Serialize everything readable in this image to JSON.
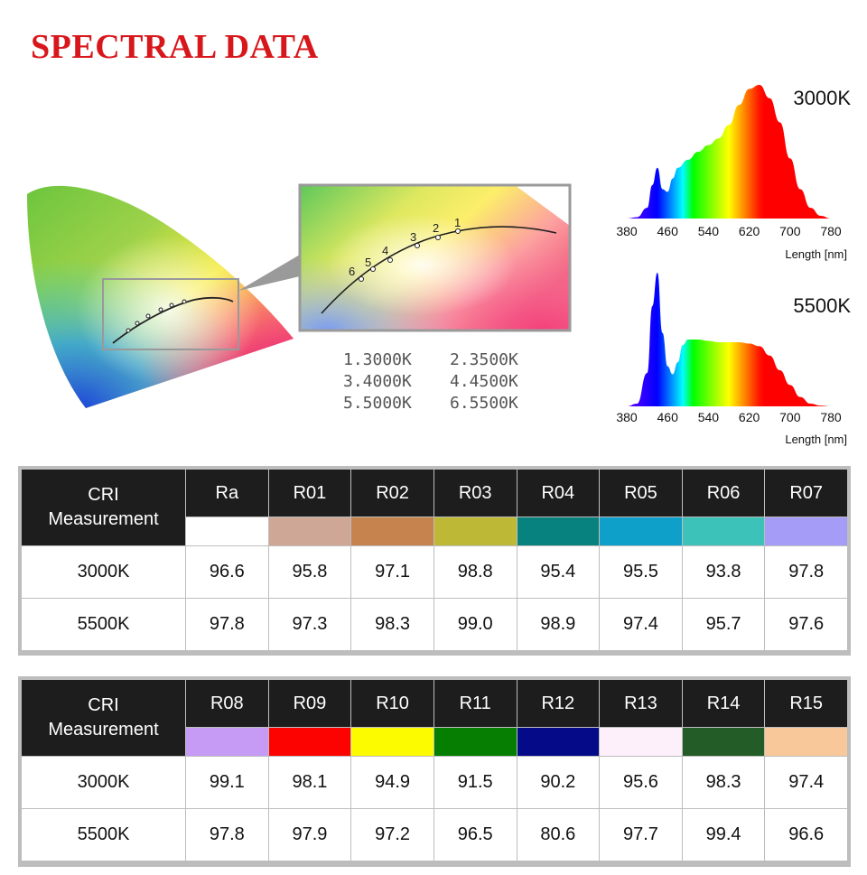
{
  "title": "SPECTRAL DATA",
  "cie_diagram": {
    "zoom_point_labels": [
      "1",
      "2",
      "3",
      "4",
      "5",
      "6"
    ],
    "legend": [
      "1.3000K",
      "2.3500K",
      "3.4000K",
      "4.4500K",
      "5.5000K",
      "6.5500K"
    ]
  },
  "chart_data": [
    {
      "type": "area",
      "title": "3000K",
      "xlabel": "Length [nm]",
      "x_ticks": [
        "380",
        "460",
        "540",
        "620",
        "700",
        "780"
      ],
      "xlim": [
        380,
        780
      ],
      "x": [
        380,
        400,
        420,
        430,
        440,
        450,
        460,
        470,
        480,
        500,
        520,
        540,
        560,
        580,
        600,
        620,
        640,
        660,
        680,
        700,
        720,
        740,
        760,
        780
      ],
      "y": [
        0,
        0.01,
        0.08,
        0.25,
        0.38,
        0.22,
        0.2,
        0.3,
        0.38,
        0.44,
        0.5,
        0.55,
        0.6,
        0.7,
        0.85,
        0.97,
        1.0,
        0.9,
        0.72,
        0.45,
        0.22,
        0.08,
        0.02,
        0
      ]
    },
    {
      "type": "area",
      "title": "5500K",
      "xlabel": "Length [nm]",
      "x_ticks": [
        "380",
        "460",
        "540",
        "620",
        "700",
        "780"
      ],
      "xlim": [
        380,
        780
      ],
      "x": [
        380,
        400,
        420,
        430,
        440,
        450,
        460,
        470,
        480,
        490,
        500,
        520,
        540,
        560,
        580,
        600,
        620,
        640,
        660,
        680,
        700,
        720,
        740,
        760,
        780
      ],
      "y": [
        0,
        0.02,
        0.25,
        0.75,
        1.0,
        0.55,
        0.3,
        0.24,
        0.33,
        0.46,
        0.5,
        0.5,
        0.49,
        0.48,
        0.48,
        0.48,
        0.47,
        0.45,
        0.38,
        0.27,
        0.16,
        0.07,
        0.02,
        0.005,
        0
      ]
    }
  ],
  "tables": [
    {
      "header_label_line1": "CRI",
      "header_label_line2": "Measurement",
      "columns": [
        {
          "name": "Ra",
          "color": "#ffffff"
        },
        {
          "name": "R01",
          "color": "#cea796"
        },
        {
          "name": "R02",
          "color": "#c6834e"
        },
        {
          "name": "R03",
          "color": "#bdb936"
        },
        {
          "name": "R04",
          "color": "#08827e"
        },
        {
          "name": "R05",
          "color": "#0ea0c8"
        },
        {
          "name": "R06",
          "color": "#3cc2b8"
        },
        {
          "name": "R07",
          "color": "#a59cf7"
        }
      ],
      "rows": [
        {
          "label": "3000K",
          "values": [
            "96.6",
            "95.8",
            "97.1",
            "98.8",
            "95.4",
            "95.5",
            "93.8",
            "97.8"
          ]
        },
        {
          "label": "5500K",
          "values": [
            "97.8",
            "97.3",
            "98.3",
            "99.0",
            "98.9",
            "97.4",
            "95.7",
            "97.6"
          ]
        }
      ]
    },
    {
      "header_label_line1": "CRI",
      "header_label_line2": "Measurement",
      "columns": [
        {
          "name": "R08",
          "color": "#c59bf6"
        },
        {
          "name": "R09",
          "color": "#fc0201"
        },
        {
          "name": "R10",
          "color": "#fcfb00"
        },
        {
          "name": "R11",
          "color": "#057e02"
        },
        {
          "name": "R12",
          "color": "#050a88"
        },
        {
          "name": "R13",
          "color": "#fdf0fb"
        },
        {
          "name": "R14",
          "color": "#235c26"
        },
        {
          "name": "R15",
          "color": "#f8c89b"
        }
      ],
      "rows": [
        {
          "label": "3000K",
          "values": [
            "99.1",
            "98.1",
            "94.9",
            "91.5",
            "90.2",
            "95.6",
            "98.3",
            "97.4"
          ]
        },
        {
          "label": "5500K",
          "values": [
            "97.8",
            "97.9",
            "97.2",
            "96.5",
            "80.6",
            "97.7",
            "99.4",
            "96.6"
          ]
        }
      ]
    }
  ]
}
